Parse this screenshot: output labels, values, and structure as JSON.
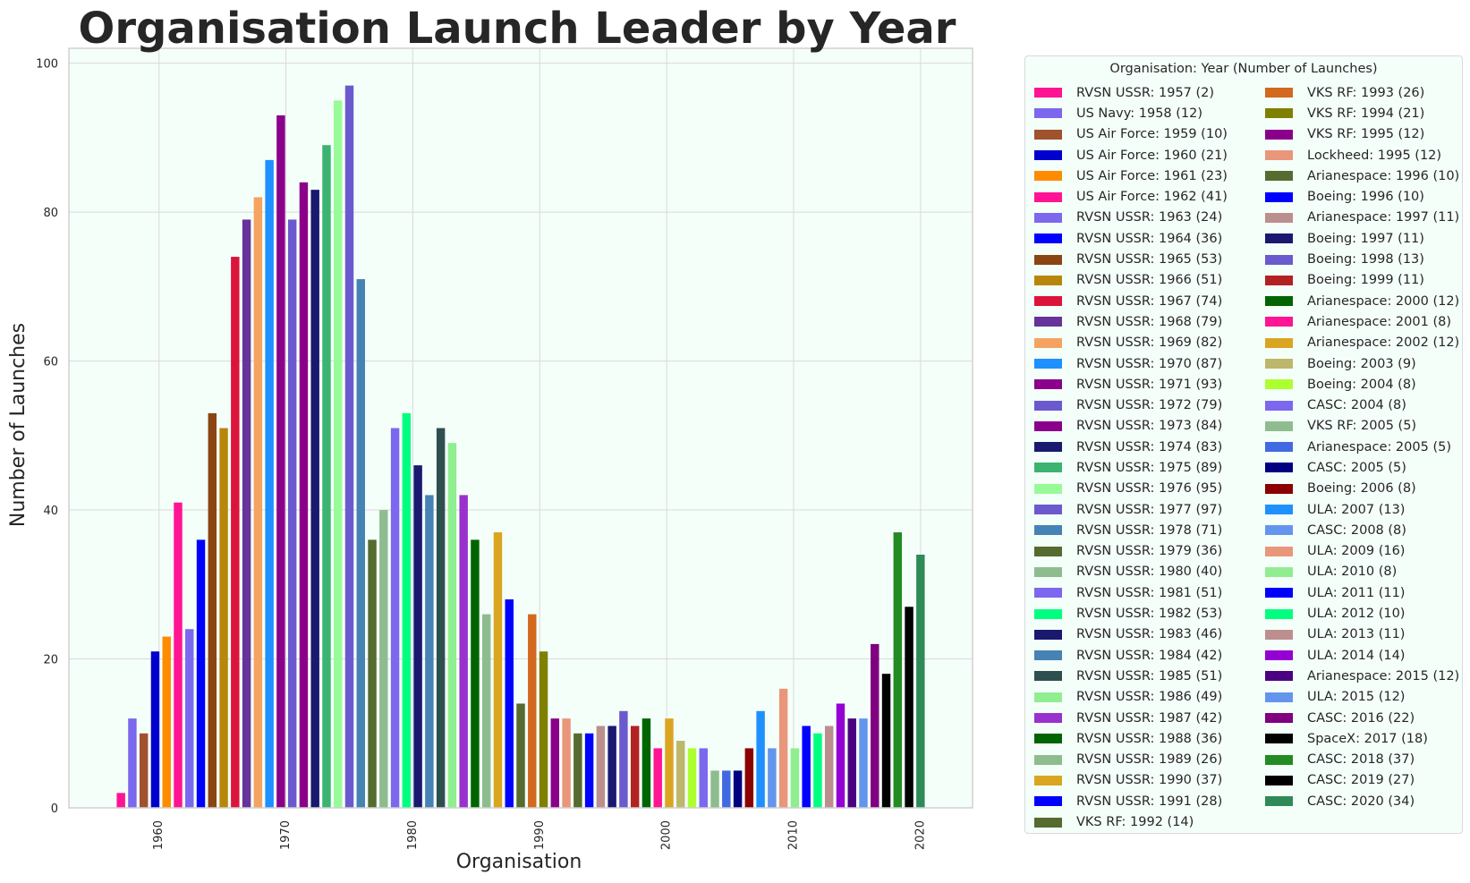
{
  "chart_data": {
    "type": "bar",
    "title": "Organisation Launch Leader by Year",
    "xlabel": "Organisation",
    "ylabel": "Number of Launches",
    "xlim": [
      1952.9,
      2024.1
    ],
    "ylim": [
      0,
      102
    ],
    "x_ticks": [
      1960,
      1970,
      1980,
      1990,
      2000,
      2010,
      2020
    ],
    "y_ticks": [
      0,
      20,
      40,
      60,
      80,
      100
    ],
    "grid": true,
    "legend_title": "Organisation: Year (Number of Launches)",
    "legend_position": "outside-right",
    "bars": [
      {
        "year": 1957,
        "org": "RVSN USSR",
        "value": 2,
        "color": "#ff1493",
        "label": "RVSN USSR: 1957 (2)"
      },
      {
        "year": 1958,
        "org": "US Navy",
        "value": 12,
        "color": "#7b68ee",
        "label": "US Navy: 1958 (12)"
      },
      {
        "year": 1959,
        "org": "US Air Force",
        "value": 10,
        "color": "#a0522d",
        "label": "US Air Force: 1959 (10)"
      },
      {
        "year": 1960,
        "org": "US Air Force",
        "value": 21,
        "color": "#0000cd",
        "label": "US Air Force: 1960 (21)"
      },
      {
        "year": 1961,
        "org": "US Air Force",
        "value": 23,
        "color": "#ff8c00",
        "label": "US Air Force: 1961 (23)"
      },
      {
        "year": 1962,
        "org": "US Air Force",
        "value": 41,
        "color": "#ff1493",
        "label": "US Air Force: 1962 (41)"
      },
      {
        "year": 1963,
        "org": "RVSN USSR",
        "value": 24,
        "color": "#7b68ee",
        "label": "RVSN USSR: 1963 (24)"
      },
      {
        "year": 1964,
        "org": "RVSN USSR",
        "value": 36,
        "color": "#0000ff",
        "label": "RVSN USSR: 1964 (36)"
      },
      {
        "year": 1965,
        "org": "RVSN USSR",
        "value": 53,
        "color": "#8b4513",
        "label": "RVSN USSR: 1965 (53)"
      },
      {
        "year": 1966,
        "org": "RVSN USSR",
        "value": 51,
        "color": "#b8860b",
        "label": "RVSN USSR: 1966 (51)"
      },
      {
        "year": 1967,
        "org": "RVSN USSR",
        "value": 74,
        "color": "#dc143c",
        "label": "RVSN USSR: 1967 (74)"
      },
      {
        "year": 1968,
        "org": "RVSN USSR",
        "value": 79,
        "color": "#663399",
        "label": "RVSN USSR: 1968 (79)"
      },
      {
        "year": 1969,
        "org": "RVSN USSR",
        "value": 82,
        "color": "#f4a460",
        "label": "RVSN USSR: 1969 (82)"
      },
      {
        "year": 1970,
        "org": "RVSN USSR",
        "value": 87,
        "color": "#1e90ff",
        "label": "RVSN USSR: 1970 (87)"
      },
      {
        "year": 1971,
        "org": "RVSN USSR",
        "value": 93,
        "color": "#8b008b",
        "label": "RVSN USSR: 1971 (93)"
      },
      {
        "year": 1972,
        "org": "RVSN USSR",
        "value": 79,
        "color": "#6a5acd",
        "label": "RVSN USSR: 1972 (79)"
      },
      {
        "year": 1973,
        "org": "RVSN USSR",
        "value": 84,
        "color": "#8b008b",
        "label": "RVSN USSR: 1973 (84)"
      },
      {
        "year": 1974,
        "org": "RVSN USSR",
        "value": 83,
        "color": "#191970",
        "label": "RVSN USSR: 1974 (83)"
      },
      {
        "year": 1975,
        "org": "RVSN USSR",
        "value": 89,
        "color": "#3cb371",
        "label": "RVSN USSR: 1975 (89)"
      },
      {
        "year": 1976,
        "org": "RVSN USSR",
        "value": 95,
        "color": "#98fb98",
        "label": "RVSN USSR: 1976 (95)"
      },
      {
        "year": 1977,
        "org": "RVSN USSR",
        "value": 97,
        "color": "#6a5acd",
        "label": "RVSN USSR: 1977 (97)"
      },
      {
        "year": 1978,
        "org": "RVSN USSR",
        "value": 71,
        "color": "#4682b4",
        "label": "RVSN USSR: 1978 (71)"
      },
      {
        "year": 1979,
        "org": "RVSN USSR",
        "value": 36,
        "color": "#556b2f",
        "label": "RVSN USSR: 1979 (36)"
      },
      {
        "year": 1980,
        "org": "RVSN USSR",
        "value": 40,
        "color": "#8fbc8f",
        "label": "RVSN USSR: 1980 (40)"
      },
      {
        "year": 1981,
        "org": "RVSN USSR",
        "value": 51,
        "color": "#7b68ee",
        "label": "RVSN USSR: 1981 (51)"
      },
      {
        "year": 1982,
        "org": "RVSN USSR",
        "value": 53,
        "color": "#00ff7f",
        "label": "RVSN USSR: 1982 (53)"
      },
      {
        "year": 1983,
        "org": "RVSN USSR",
        "value": 46,
        "color": "#191970",
        "label": "RVSN USSR: 1983 (46)"
      },
      {
        "year": 1984,
        "org": "RVSN USSR",
        "value": 42,
        "color": "#4682b4",
        "label": "RVSN USSR: 1984 (42)"
      },
      {
        "year": 1985,
        "org": "RVSN USSR",
        "value": 51,
        "color": "#2f4f4f",
        "label": "RVSN USSR: 1985 (51)"
      },
      {
        "year": 1986,
        "org": "RVSN USSR",
        "value": 49,
        "color": "#90ee90",
        "label": "RVSN USSR: 1986 (49)"
      },
      {
        "year": 1987,
        "org": "RVSN USSR",
        "value": 42,
        "color": "#9932cc",
        "label": "RVSN USSR: 1987 (42)"
      },
      {
        "year": 1988,
        "org": "RVSN USSR",
        "value": 36,
        "color": "#006400",
        "label": "RVSN USSR: 1988 (36)"
      },
      {
        "year": 1989,
        "org": "RVSN USSR",
        "value": 26,
        "color": "#8fbc8f",
        "label": "RVSN USSR: 1989 (26)"
      },
      {
        "year": 1990,
        "org": "RVSN USSR",
        "value": 37,
        "color": "#daa520",
        "label": "RVSN USSR: 1990 (37)"
      },
      {
        "year": 1991,
        "org": "RVSN USSR",
        "value": 28,
        "color": "#0000ff",
        "label": "RVSN USSR: 1991 (28)"
      },
      {
        "year": 1992,
        "org": "VKS RF",
        "value": 14,
        "color": "#556b2f",
        "label": "VKS RF: 1992 (14)"
      },
      {
        "year": 1993,
        "org": "VKS RF",
        "value": 26,
        "color": "#d2691e",
        "label": "VKS RF: 1993 (26)"
      },
      {
        "year": 1994,
        "org": "VKS RF",
        "value": 21,
        "color": "#808000",
        "label": "VKS RF: 1994 (21)"
      },
      {
        "year": 1995,
        "org": "VKS RF",
        "value": 12,
        "color": "#8b008b",
        "label": "VKS RF: 1995 (12)"
      },
      {
        "year": 1995,
        "org": "Lockheed",
        "value": 12,
        "color": "#e9967a",
        "label": "Lockheed: 1995 (12)"
      },
      {
        "year": 1996,
        "org": "Arianespace",
        "value": 10,
        "color": "#556b2f",
        "label": "Arianespace: 1996 (10)"
      },
      {
        "year": 1996,
        "org": "Boeing",
        "value": 10,
        "color": "#0000ff",
        "label": "Boeing: 1996 (10)"
      },
      {
        "year": 1997,
        "org": "Arianespace",
        "value": 11,
        "color": "#bc8f8f",
        "label": "Arianespace: 1997 (11)"
      },
      {
        "year": 1997,
        "org": "Boeing",
        "value": 11,
        "color": "#191970",
        "label": "Boeing: 1997 (11)"
      },
      {
        "year": 1998,
        "org": "Boeing",
        "value": 13,
        "color": "#6a5acd",
        "label": "Boeing: 1998 (13)"
      },
      {
        "year": 1999,
        "org": "Boeing",
        "value": 11,
        "color": "#b22222",
        "label": "Boeing: 1999 (11)"
      },
      {
        "year": 2000,
        "org": "Arianespace",
        "value": 12,
        "color": "#006400",
        "label": "Arianespace: 2000 (12)"
      },
      {
        "year": 2001,
        "org": "Arianespace",
        "value": 8,
        "color": "#ff1493",
        "label": "Arianespace: 2001 (8)"
      },
      {
        "year": 2002,
        "org": "Arianespace",
        "value": 12,
        "color": "#daa520",
        "label": "Arianespace: 2002 (12)"
      },
      {
        "year": 2003,
        "org": "Boeing",
        "value": 9,
        "color": "#bdb76b",
        "label": "Boeing: 2003 (9)"
      },
      {
        "year": 2004,
        "org": "Boeing",
        "value": 8,
        "color": "#adff2f",
        "label": "Boeing: 2004 (8)"
      },
      {
        "year": 2004,
        "org": "CASC",
        "value": 8,
        "color": "#7b68ee",
        "label": "CASC: 2004 (8)"
      },
      {
        "year": 2005,
        "org": "VKS RF",
        "value": 5,
        "color": "#8fbc8f",
        "label": "VKS RF: 2005 (5)"
      },
      {
        "year": 2005,
        "org": "Arianespace",
        "value": 5,
        "color": "#4169e1",
        "label": "Arianespace: 2005 (5)"
      },
      {
        "year": 2005,
        "org": "CASC",
        "value": 5,
        "color": "#000080",
        "label": "CASC: 2005 (5)"
      },
      {
        "year": 2006,
        "org": "Boeing",
        "value": 8,
        "color": "#8b0000",
        "label": "Boeing: 2006 (8)"
      },
      {
        "year": 2007,
        "org": "ULA",
        "value": 13,
        "color": "#1e90ff",
        "label": "ULA: 2007 (13)"
      },
      {
        "year": 2008,
        "org": "CASC",
        "value": 8,
        "color": "#6495ed",
        "label": "CASC: 2008 (8)"
      },
      {
        "year": 2009,
        "org": "ULA",
        "value": 16,
        "color": "#e9967a",
        "label": "ULA: 2009 (16)"
      },
      {
        "year": 2010,
        "org": "ULA",
        "value": 8,
        "color": "#90ee90",
        "label": "ULA: 2010 (8)"
      },
      {
        "year": 2011,
        "org": "ULA",
        "value": 11,
        "color": "#0000ff",
        "label": "ULA: 2011 (11)"
      },
      {
        "year": 2012,
        "org": "ULA",
        "value": 10,
        "color": "#00ff7f",
        "label": "ULA: 2012 (10)"
      },
      {
        "year": 2013,
        "org": "ULA",
        "value": 11,
        "color": "#bc8f8f",
        "label": "ULA: 2013 (11)"
      },
      {
        "year": 2014,
        "org": "ULA",
        "value": 14,
        "color": "#9400d3",
        "label": "ULA: 2014 (14)"
      },
      {
        "year": 2015,
        "org": "Arianespace",
        "value": 12,
        "color": "#4b0082",
        "label": "Arianespace: 2015 (12)"
      },
      {
        "year": 2015,
        "org": "ULA",
        "value": 12,
        "color": "#6495ed",
        "label": "ULA: 2015 (12)"
      },
      {
        "year": 2016,
        "org": "CASC",
        "value": 22,
        "color": "#800080",
        "label": "CASC: 2016 (22)"
      },
      {
        "year": 2017,
        "org": "SpaceX",
        "value": 18,
        "color": "#000000",
        "label": "SpaceX: 2017 (18)"
      },
      {
        "year": 2018,
        "org": "CASC",
        "value": 37,
        "color": "#228b22",
        "label": "CASC: 2018 (37)"
      },
      {
        "year": 2019,
        "org": "CASC",
        "value": 27,
        "color": "#000000",
        "label": "CASC: 2019 (27)"
      },
      {
        "year": 2020,
        "org": "CASC",
        "value": 34,
        "color": "#2e8b57",
        "label": "CASC: 2020 (34)"
      }
    ]
  },
  "colors": {
    "plot_background": "#f5fffa",
    "grid": "#d9d9d9",
    "axis_text": "#262626"
  }
}
